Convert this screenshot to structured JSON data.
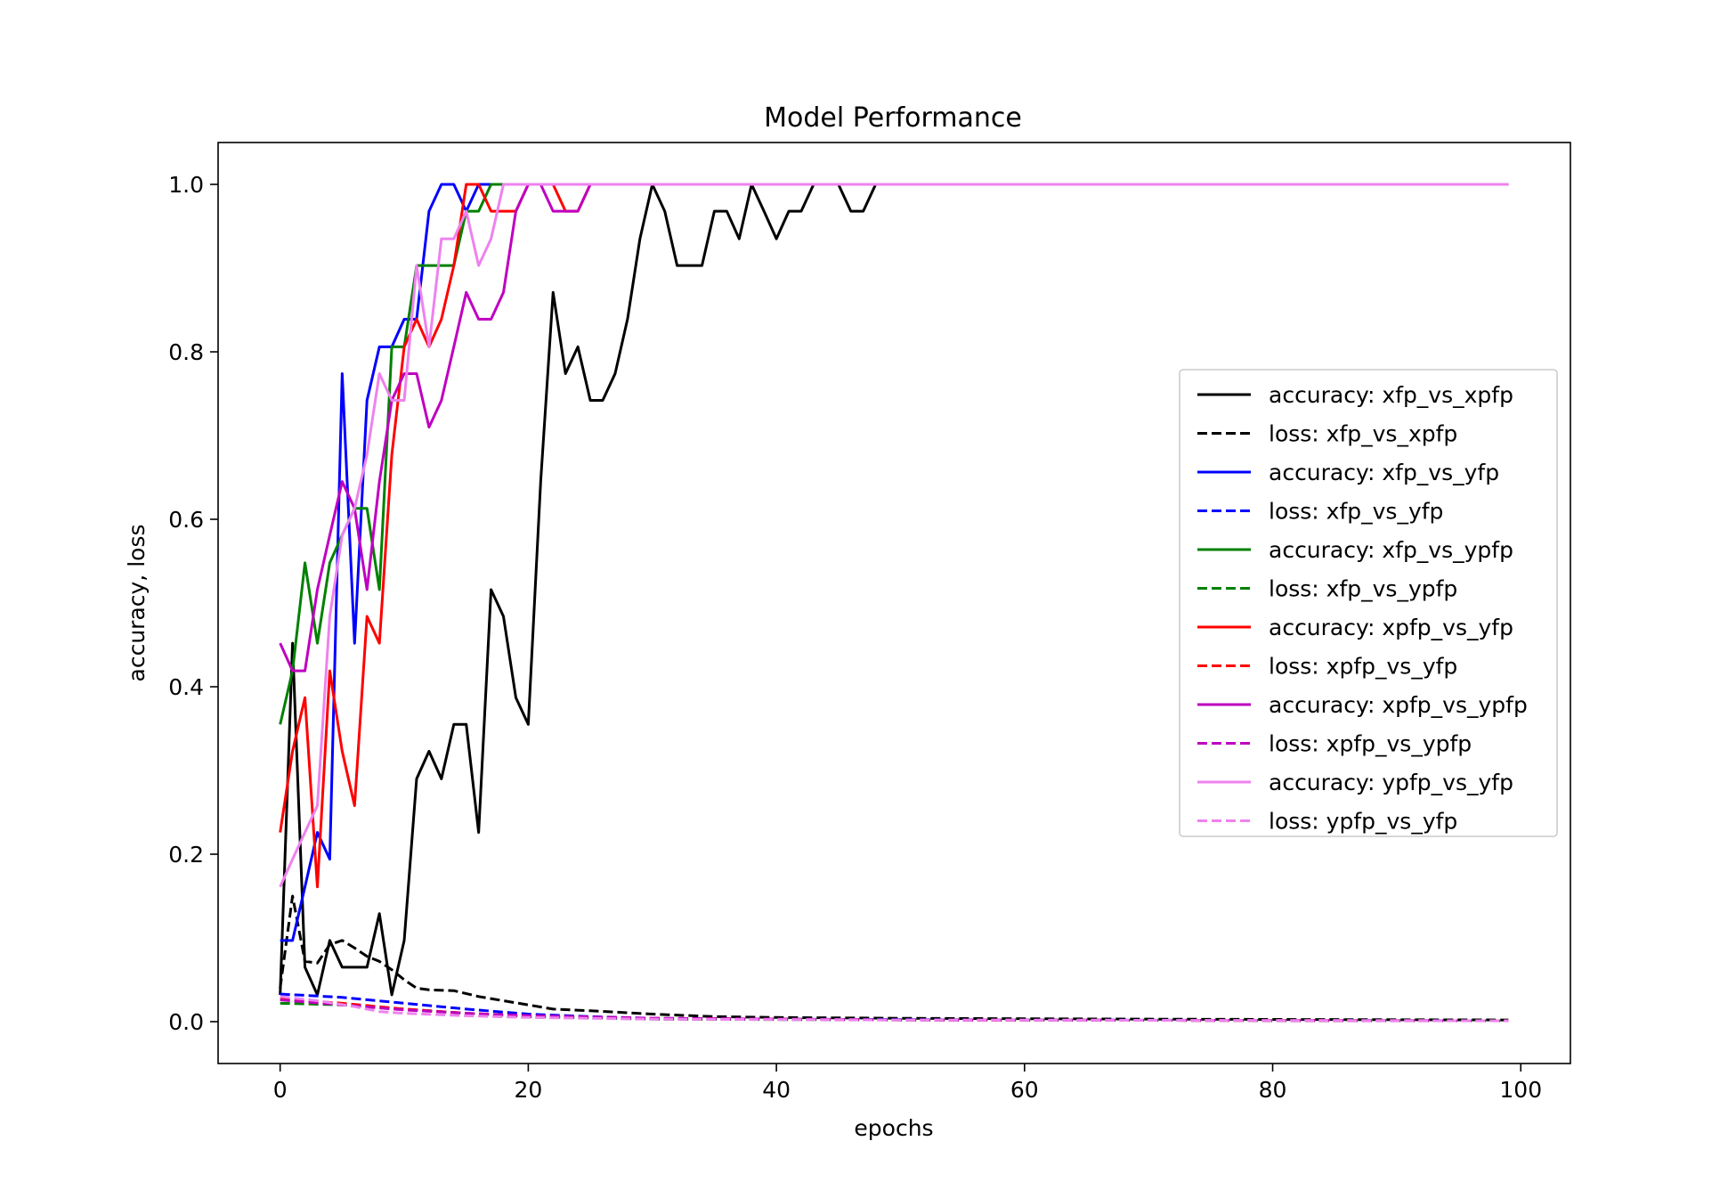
{
  "chart_data": {
    "type": "line",
    "title": "Model Performance",
    "xlabel": "epochs",
    "ylabel": "accuracy, loss",
    "xlim": [
      -5,
      104
    ],
    "ylim": [
      -0.05,
      1.05
    ],
    "xticks": [
      0,
      20,
      40,
      60,
      80,
      100
    ],
    "yticks": [
      0.0,
      0.2,
      0.4,
      0.6,
      0.8,
      1.0
    ],
    "grid": false,
    "legend_position": "center-right",
    "series": [
      {
        "name": "accuracy: xfp_vs_xpfp",
        "color": "#000000",
        "style": "solid",
        "points": [
          [
            0,
            0.032
          ],
          [
            1,
            0.452
          ],
          [
            2,
            0.065
          ],
          [
            3,
            0.032
          ],
          [
            4,
            0.097
          ],
          [
            5,
            0.065
          ],
          [
            6,
            0.065
          ],
          [
            7,
            0.065
          ],
          [
            8,
            0.129
          ],
          [
            9,
            0.032
          ],
          [
            10,
            0.097
          ],
          [
            11,
            0.29
          ],
          [
            12,
            0.323
          ],
          [
            13,
            0.29
          ],
          [
            14,
            0.355
          ],
          [
            15,
            0.355
          ],
          [
            16,
            0.226
          ],
          [
            17,
            0.516
          ],
          [
            18,
            0.484
          ],
          [
            19,
            0.387
          ],
          [
            20,
            0.355
          ],
          [
            21,
            0.645
          ],
          [
            22,
            0.871
          ],
          [
            23,
            0.774
          ],
          [
            24,
            0.806
          ],
          [
            25,
            0.742
          ],
          [
            26,
            0.742
          ],
          [
            27,
            0.774
          ],
          [
            28,
            0.839
          ],
          [
            29,
            0.935
          ],
          [
            30,
            1.0
          ],
          [
            31,
            0.968
          ],
          [
            32,
            0.903
          ],
          [
            33,
            0.903
          ],
          [
            34,
            0.903
          ],
          [
            35,
            0.968
          ],
          [
            36,
            0.968
          ],
          [
            37,
            0.935
          ],
          [
            38,
            1.0
          ],
          [
            39,
            0.968
          ],
          [
            40,
            0.935
          ],
          [
            41,
            0.968
          ],
          [
            42,
            0.968
          ],
          [
            43,
            1.0
          ],
          [
            44,
            1.0
          ],
          [
            45,
            1.0
          ],
          [
            46,
            0.968
          ],
          [
            47,
            0.968
          ],
          [
            48,
            1.0
          ],
          [
            99,
            1.0
          ]
        ]
      },
      {
        "name": "loss: xfp_vs_xpfp",
        "color": "#000000",
        "style": "dashed",
        "points": [
          [
            0,
            0.04
          ],
          [
            1,
            0.15
          ],
          [
            2,
            0.072
          ],
          [
            3,
            0.07
          ],
          [
            4,
            0.092
          ],
          [
            5,
            0.097
          ],
          [
            6,
            0.088
          ],
          [
            7,
            0.078
          ],
          [
            8,
            0.072
          ],
          [
            9,
            0.062
          ],
          [
            10,
            0.05
          ],
          [
            11,
            0.04
          ],
          [
            12,
            0.038
          ],
          [
            14,
            0.037
          ],
          [
            16,
            0.03
          ],
          [
            18,
            0.025
          ],
          [
            20,
            0.02
          ],
          [
            22,
            0.015
          ],
          [
            25,
            0.013
          ],
          [
            30,
            0.009
          ],
          [
            35,
            0.006
          ],
          [
            40,
            0.005
          ],
          [
            50,
            0.004
          ],
          [
            70,
            0.003
          ],
          [
            99,
            0.002
          ]
        ]
      },
      {
        "name": "accuracy: xfp_vs_yfp",
        "color": "#0000ff",
        "style": "solid",
        "points": [
          [
            0,
            0.097
          ],
          [
            1,
            0.097
          ],
          [
            2,
            0.161
          ],
          [
            3,
            0.226
          ],
          [
            4,
            0.194
          ],
          [
            5,
            0.774
          ],
          [
            6,
            0.452
          ],
          [
            7,
            0.742
          ],
          [
            8,
            0.806
          ],
          [
            9,
            0.806
          ],
          [
            10,
            0.839
          ],
          [
            11,
            0.839
          ],
          [
            12,
            0.968
          ],
          [
            13,
            1.0
          ],
          [
            14,
            1.0
          ],
          [
            15,
            0.968
          ],
          [
            16,
            1.0
          ],
          [
            17,
            1.0
          ],
          [
            99,
            1.0
          ]
        ]
      },
      {
        "name": "loss: xfp_vs_yfp",
        "color": "#0000ff",
        "style": "dashed",
        "points": [
          [
            0,
            0.033
          ],
          [
            5,
            0.029
          ],
          [
            10,
            0.022
          ],
          [
            15,
            0.015
          ],
          [
            20,
            0.009
          ],
          [
            25,
            0.006
          ],
          [
            30,
            0.004
          ],
          [
            40,
            0.003
          ],
          [
            60,
            0.002
          ],
          [
            99,
            0.001
          ]
        ]
      },
      {
        "name": "accuracy: xfp_vs_ypfp",
        "color": "#008000",
        "style": "solid",
        "points": [
          [
            0,
            0.355
          ],
          [
            1,
            0.419
          ],
          [
            2,
            0.548
          ],
          [
            3,
            0.452
          ],
          [
            4,
            0.548
          ],
          [
            5,
            0.581
          ],
          [
            6,
            0.613
          ],
          [
            7,
            0.613
          ],
          [
            8,
            0.516
          ],
          [
            9,
            0.806
          ],
          [
            10,
            0.806
          ],
          [
            11,
            0.903
          ],
          [
            12,
            0.903
          ],
          [
            13,
            0.903
          ],
          [
            14,
            0.903
          ],
          [
            15,
            0.968
          ],
          [
            16,
            0.968
          ],
          [
            17,
            1.0
          ],
          [
            99,
            1.0
          ]
        ]
      },
      {
        "name": "loss: xfp_vs_ypfp",
        "color": "#008000",
        "style": "dashed",
        "points": [
          [
            0,
            0.022
          ],
          [
            5,
            0.02
          ],
          [
            10,
            0.015
          ],
          [
            15,
            0.01
          ],
          [
            20,
            0.006
          ],
          [
            30,
            0.003
          ],
          [
            50,
            0.002
          ],
          [
            99,
            0.001
          ]
        ]
      },
      {
        "name": "accuracy: xpfp_vs_yfp",
        "color": "#ff0000",
        "style": "solid",
        "points": [
          [
            0,
            0.226
          ],
          [
            1,
            0.323
          ],
          [
            2,
            0.387
          ],
          [
            3,
            0.161
          ],
          [
            4,
            0.419
          ],
          [
            5,
            0.323
          ],
          [
            6,
            0.258
          ],
          [
            7,
            0.484
          ],
          [
            8,
            0.452
          ],
          [
            9,
            0.677
          ],
          [
            10,
            0.806
          ],
          [
            11,
            0.839
          ],
          [
            12,
            0.806
          ],
          [
            13,
            0.839
          ],
          [
            14,
            0.903
          ],
          [
            15,
            1.0
          ],
          [
            16,
            1.0
          ],
          [
            17,
            0.968
          ],
          [
            18,
            0.968
          ],
          [
            19,
            0.968
          ],
          [
            20,
            1.0
          ],
          [
            21,
            1.0
          ],
          [
            22,
            1.0
          ],
          [
            23,
            0.968
          ],
          [
            24,
            0.968
          ],
          [
            25,
            1.0
          ],
          [
            99,
            1.0
          ]
        ]
      },
      {
        "name": "loss: xpfp_vs_yfp",
        "color": "#ff0000",
        "style": "dashed",
        "points": [
          [
            0,
            0.027
          ],
          [
            5,
            0.022
          ],
          [
            10,
            0.015
          ],
          [
            15,
            0.01
          ],
          [
            20,
            0.007
          ],
          [
            30,
            0.004
          ],
          [
            50,
            0.002
          ],
          [
            99,
            0.001
          ]
        ]
      },
      {
        "name": "accuracy: xpfp_vs_ypfp",
        "color": "#bf00bf",
        "style": "solid",
        "points": [
          [
            0,
            0.452
          ],
          [
            1,
            0.419
          ],
          [
            2,
            0.419
          ],
          [
            3,
            0.516
          ],
          [
            4,
            0.581
          ],
          [
            5,
            0.645
          ],
          [
            6,
            0.613
          ],
          [
            7,
            0.516
          ],
          [
            8,
            0.645
          ],
          [
            9,
            0.742
          ],
          [
            10,
            0.774
          ],
          [
            11,
            0.774
          ],
          [
            12,
            0.71
          ],
          [
            13,
            0.742
          ],
          [
            14,
            0.806
          ],
          [
            15,
            0.871
          ],
          [
            16,
            0.839
          ],
          [
            17,
            0.839
          ],
          [
            18,
            0.871
          ],
          [
            19,
            0.968
          ],
          [
            20,
            1.0
          ],
          [
            21,
            1.0
          ],
          [
            22,
            0.968
          ],
          [
            23,
            0.968
          ],
          [
            24,
            0.968
          ],
          [
            25,
            1.0
          ],
          [
            99,
            1.0
          ]
        ]
      },
      {
        "name": "loss: xpfp_vs_ypfp",
        "color": "#bf00bf",
        "style": "dashed",
        "points": [
          [
            0,
            0.026
          ],
          [
            5,
            0.02
          ],
          [
            10,
            0.014
          ],
          [
            15,
            0.01
          ],
          [
            20,
            0.007
          ],
          [
            30,
            0.004
          ],
          [
            50,
            0.002
          ],
          [
            99,
            0.001
          ]
        ]
      },
      {
        "name": "accuracy: ypfp_vs_yfp",
        "color": "#ee82ee",
        "style": "solid",
        "points": [
          [
            0,
            0.161
          ],
          [
            1,
            0.194
          ],
          [
            2,
            0.226
          ],
          [
            3,
            0.258
          ],
          [
            4,
            0.484
          ],
          [
            5,
            0.581
          ],
          [
            6,
            0.613
          ],
          [
            7,
            0.677
          ],
          [
            8,
            0.774
          ],
          [
            9,
            0.742
          ],
          [
            10,
            0.742
          ],
          [
            11,
            0.903
          ],
          [
            12,
            0.806
          ],
          [
            13,
            0.935
          ],
          [
            14,
            0.935
          ],
          [
            15,
            0.968
          ],
          [
            16,
            0.903
          ],
          [
            17,
            0.935
          ],
          [
            18,
            1.0
          ],
          [
            99,
            1.0
          ]
        ]
      },
      {
        "name": "loss: ypfp_vs_yfp",
        "color": "#ee82ee",
        "style": "dashed",
        "points": [
          [
            0,
            0.03
          ],
          [
            3,
            0.025
          ],
          [
            6,
            0.018
          ],
          [
            8,
            0.012
          ],
          [
            10,
            0.01
          ],
          [
            15,
            0.007
          ],
          [
            20,
            0.005
          ],
          [
            30,
            0.003
          ],
          [
            50,
            0.002
          ],
          [
            99,
            0.001
          ]
        ]
      }
    ]
  }
}
